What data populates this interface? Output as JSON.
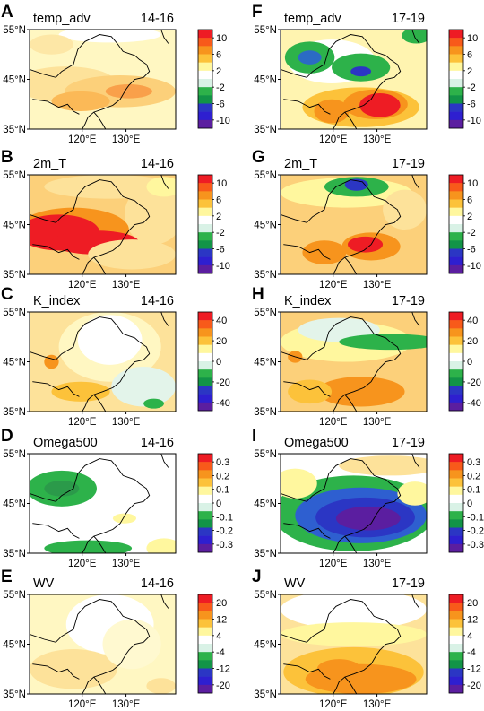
{
  "figure": {
    "panels": [
      {
        "id": "A",
        "letter": "A",
        "variable": "temp_adv",
        "period": "14-16",
        "scale": "temp",
        "field": "A"
      },
      {
        "id": "F",
        "letter": "F",
        "variable": "temp_adv",
        "period": "17-19",
        "scale": "temp",
        "field": "F"
      },
      {
        "id": "B",
        "letter": "B",
        "variable": "2m_T",
        "period": "14-16",
        "scale": "temp",
        "field": "B"
      },
      {
        "id": "G",
        "letter": "G",
        "variable": "2m_T",
        "period": "17-19",
        "scale": "temp",
        "field": "G"
      },
      {
        "id": "C",
        "letter": "C",
        "variable": "K_index",
        "period": "14-16",
        "scale": "kindex",
        "field": "C"
      },
      {
        "id": "H",
        "letter": "H",
        "variable": "K_index",
        "period": "17-19",
        "scale": "kindex",
        "field": "H"
      },
      {
        "id": "D",
        "letter": "D",
        "variable": "Omega500",
        "period": "14-16",
        "scale": "omega",
        "field": "D"
      },
      {
        "id": "I",
        "letter": "I",
        "variable": "Omega500",
        "period": "17-19",
        "scale": "omega",
        "field": "I"
      },
      {
        "id": "E",
        "letter": "E",
        "variable": "WV",
        "period": "14-16",
        "scale": "wv",
        "field": "E"
      },
      {
        "id": "J",
        "letter": "J",
        "variable": "WV",
        "period": "17-19",
        "scale": "wv",
        "field": "J"
      }
    ],
    "lat_labels": [
      "55°N",
      "45°N",
      "35°N"
    ],
    "lon_labels": [
      "120°E",
      "130°E"
    ],
    "colorbar_scales": {
      "temp": [
        "10",
        "6",
        "2",
        "-2",
        "-6",
        "-10"
      ],
      "kindex": [
        "40",
        "20",
        "0",
        "-20",
        "-40"
      ],
      "omega": [
        "0.3",
        "0.2",
        "0.1",
        "0",
        "-0.1",
        "-0.2",
        "-0.3"
      ],
      "wv": [
        "20",
        "12",
        "4",
        "-4",
        "-12",
        "-20"
      ]
    },
    "colorbar_colors": [
      "#ee1c24",
      "#f85a1a",
      "#f7941d",
      "#fcc23a",
      "#fff79e",
      "#ffffff",
      "#d9f2e6",
      "#2db24a",
      "#129447",
      "#2b36c4",
      "#2e1fd0",
      "#5b1ea0"
    ]
  }
}
